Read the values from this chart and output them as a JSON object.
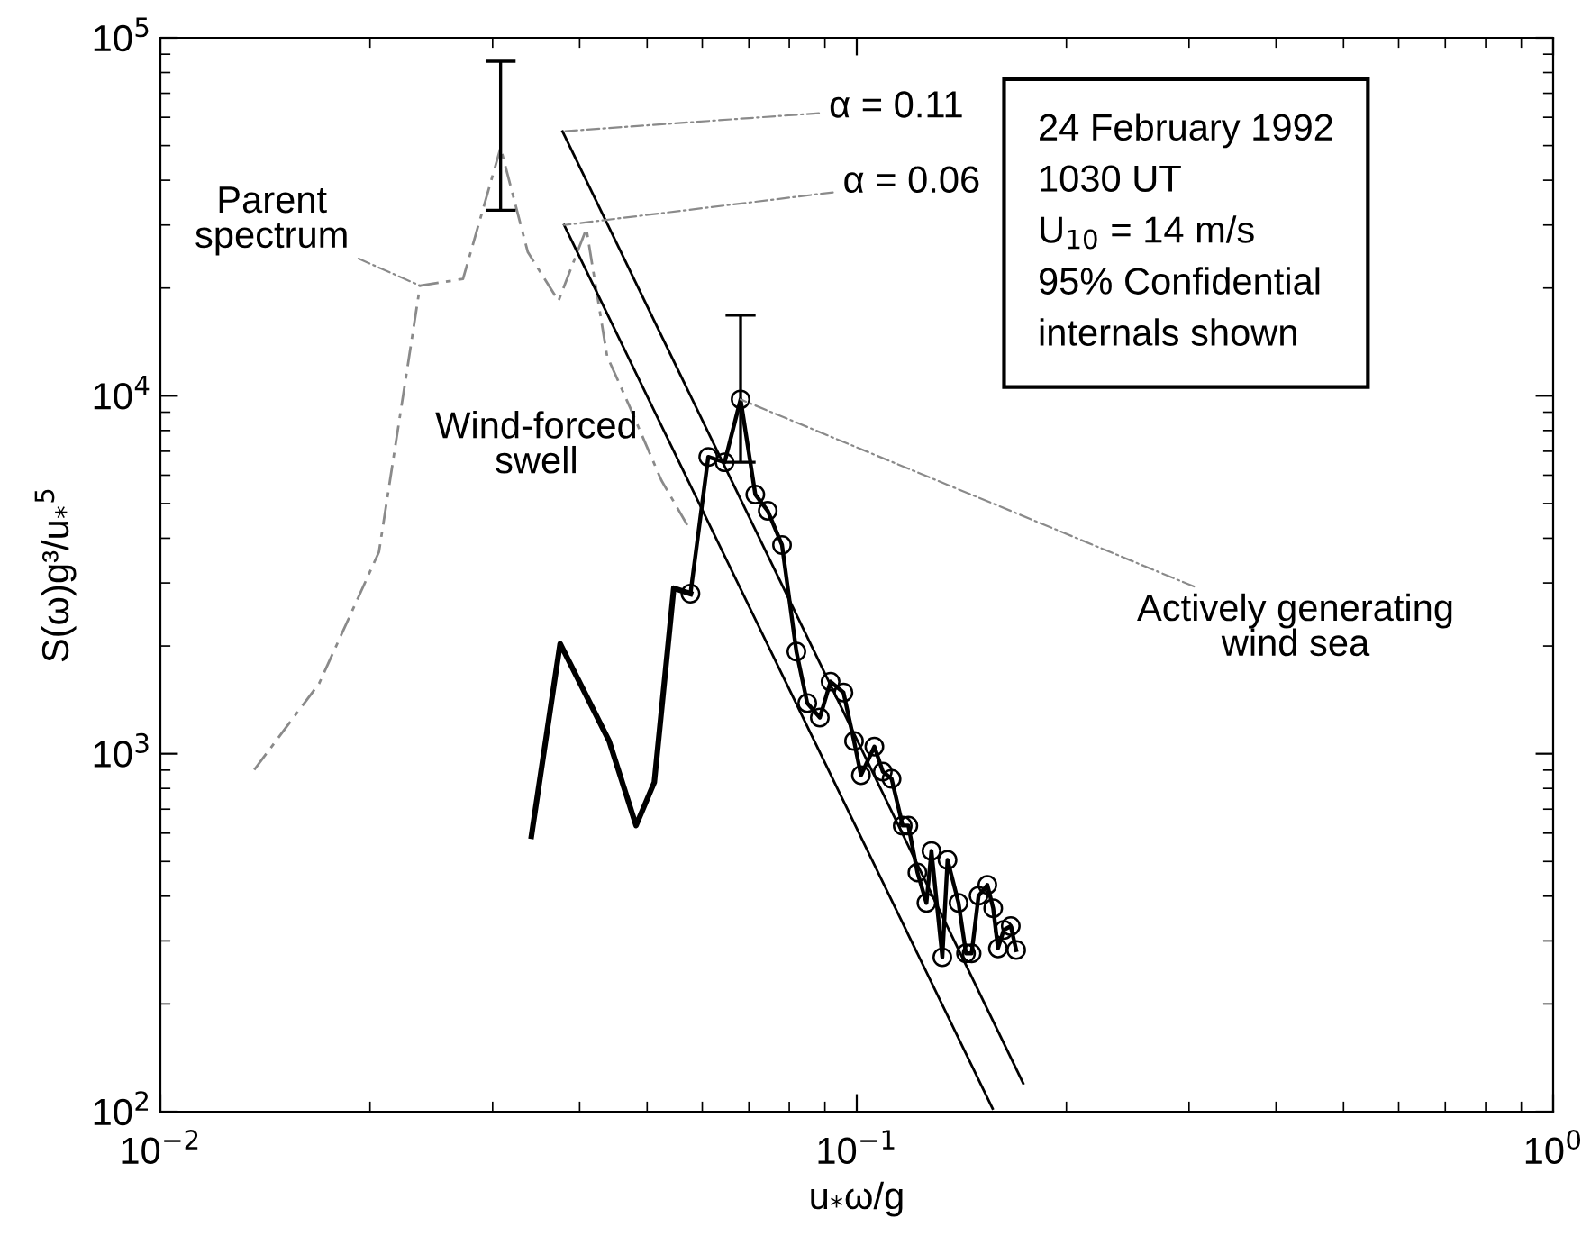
{
  "chart_data": {
    "type": "line",
    "xlabel": "u$_{*}$ω/g",
    "ylabel": "S(ω)g³/u$_{*}$$^{5}$",
    "log": "xy",
    "grid": false,
    "xlim": [
      0.01,
      1
    ],
    "xticks": [
      {
        "value": 0.01,
        "label": "10$^{−2}$"
      },
      {
        "value": 0.1,
        "label": "10$^{−1}$"
      },
      {
        "value": 1,
        "label": "10$^{0}$"
      }
    ],
    "ylim": [
      100,
      100000
    ],
    "yticks": [
      {
        "value": 100,
        "label": "10$^{2}$"
      },
      {
        "value": 1000,
        "label": "10$^{3}$"
      },
      {
        "value": 10000,
        "label": "10$^{4}$"
      },
      {
        "value": 100000,
        "label": "10$^{5}$"
      }
    ],
    "series": [
      {
        "color": "#8a8a8a",
        "line_style": "dashed",
        "marker": "none",
        "x": [
          0.01364,
          0.0169,
          0.0206,
          0.0236,
          0.0272,
          0.0308,
          0.0337,
          0.0373,
          0.0409,
          0.0438,
          0.0473,
          0.0524,
          0.0573
        ],
        "values": [
          902,
          1570,
          3660,
          20300,
          21200,
          49300,
          25200,
          18400,
          29300,
          12900,
          9230,
          5810,
          4300
        ],
        "errors": [
          null,
          null,
          null,
          null,
          null,
          [
            33000,
            86000
          ],
          null,
          null,
          null,
          null,
          null,
          null,
          null
        ]
      },
      {
        "color": "#000000",
        "line_style": "solid",
        "marker": "none",
        "x": [
          0.0341,
          0.0375,
          0.0441,
          0.0482,
          0.0512,
          0.0546,
          0.0577
        ],
        "values": [
          588,
          2030,
          1085,
          630,
          832,
          2900,
          2800
        ]
      },
      {
        "color": "#000000",
        "line_style": "solid",
        "marker": "circle",
        "x": [
          0.0577,
          0.0612,
          0.0646,
          0.0681,
          0.0715,
          0.0745,
          0.0781,
          0.0819,
          0.0849,
          0.0885,
          0.0917,
          0.0957,
          0.0991,
          0.1014,
          0.106,
          0.109,
          0.1122,
          0.1164,
          0.1186,
          0.1222,
          0.1259,
          0.128,
          0.1327,
          0.135,
          0.14,
          0.1435,
          0.1462,
          0.1496,
          0.154,
          0.157,
          0.1595,
          0.1626,
          0.1664,
          0.1694
        ],
        "values": [
          2800,
          6750,
          6520,
          9770,
          5300,
          4770,
          3830,
          1930,
          1384,
          1262,
          1590,
          1482,
          1085,
          871,
          1047,
          891,
          851,
          630,
          630,
          466,
          383,
          535,
          270,
          505,
          383,
          277,
          277,
          401,
          430,
          370,
          286,
          322,
          330,
          283
        ],
        "errors": [
          null,
          null,
          null,
          [
            6520,
            16800
          ],
          null,
          null,
          null,
          null,
          null,
          null,
          null,
          null,
          null,
          null,
          null,
          null,
          null,
          null,
          null,
          null,
          null,
          null,
          null,
          null,
          null,
          null,
          null,
          null,
          null,
          null,
          null,
          null,
          null,
          null
        ]
      },
      {
        "color": "#000000",
        "line_style": "solid",
        "marker": "none",
        "x": [
          0.0378,
          0.1734
        ],
        "values": [
          54800,
          120
        ]
      },
      {
        "color": "#000000",
        "line_style": "solid",
        "marker": "none",
        "x": [
          0.038,
          0.1567
        ],
        "values": [
          30000,
          102
        ]
      }
    ],
    "annotations": [
      {
        "text": "Parent\nspectrum",
        "x": 0.0236,
        "y": 20300
      },
      {
        "text": "α = 0.11",
        "x": 0.0378,
        "y": 54800
      },
      {
        "text": "α = 0.06",
        "x": 0.038,
        "y": 30000
      },
      "Wind-forced\nswell",
      {
        "text": "Actively generating\nwind sea",
        "x": 0.0681,
        "y": 9770
      },
      "24 February 1992\n1030 UT\nU$_{10}$ = 14 m/s\n95% Confidential\ninternals shown"
    ]
  }
}
